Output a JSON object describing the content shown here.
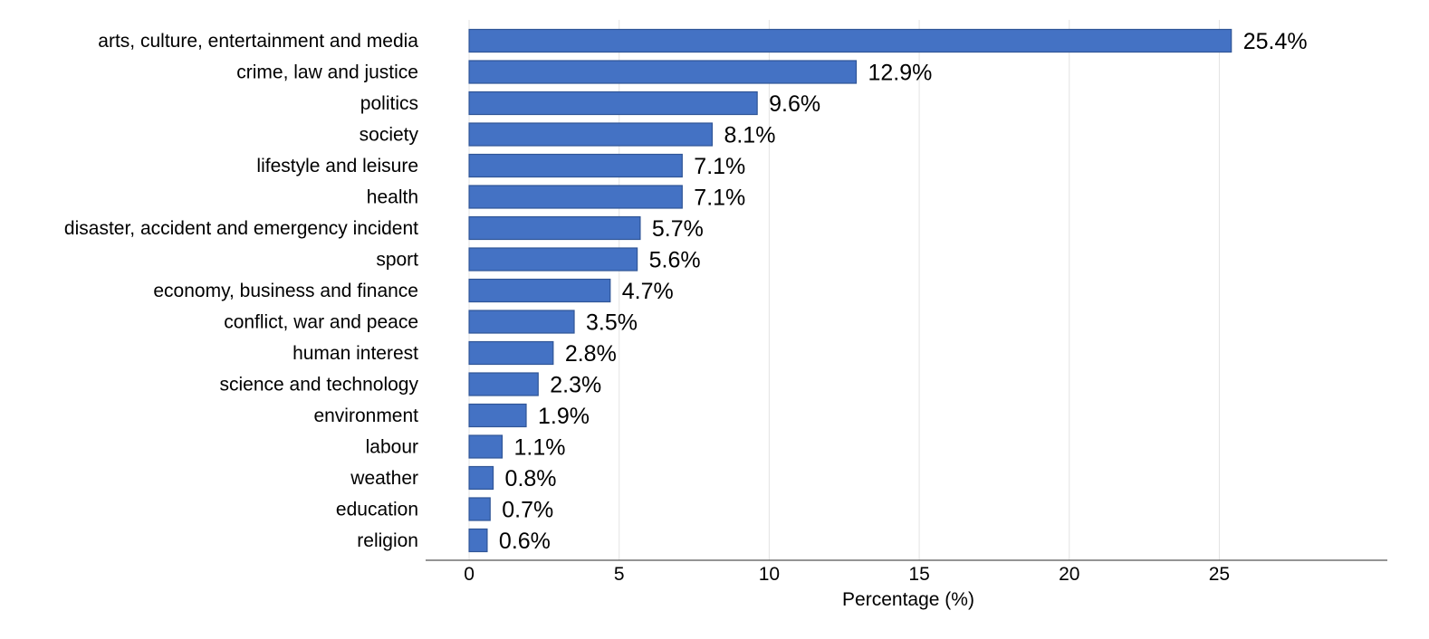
{
  "chart_data": {
    "type": "bar",
    "orientation": "horizontal",
    "categories": [
      "arts, culture, entertainment and media",
      "crime, law and justice",
      "politics",
      "society",
      "lifestyle and leisure",
      "health",
      "disaster, accident and emergency incident",
      "sport",
      "economy, business and finance",
      "conflict, war and peace",
      "human interest",
      "science and technology",
      "environment",
      "labour",
      "weather",
      "education",
      "religion"
    ],
    "values": [
      25.4,
      12.9,
      9.6,
      8.1,
      7.1,
      7.1,
      5.7,
      5.6,
      4.7,
      3.5,
      2.8,
      2.3,
      1.9,
      1.1,
      0.8,
      0.7,
      0.6
    ],
    "data_labels": [
      "25.4%",
      "12.9%",
      "9.6%",
      "8.1%",
      "7.1%",
      "7.1%",
      "5.7%",
      "5.6%",
      "4.7%",
      "3.5%",
      "2.8%",
      "2.3%",
      "1.9%",
      "1.1%",
      "0.8%",
      "0.7%",
      "0.6%"
    ],
    "title": "",
    "xlabel": "Percentage (%)",
    "ylabel": "",
    "xlim": [
      -1.45,
      30.6
    ],
    "xticks": [
      0,
      5,
      10,
      15,
      20,
      25
    ],
    "xtick_labels": [
      "0",
      "5",
      "10",
      "15",
      "20",
      "25"
    ],
    "grid": "vertical",
    "legend": "none",
    "colors": {
      "bar_fill": "#4472c4",
      "bar_stroke": "#2f5597",
      "grid": "#e3e3e3",
      "axis": "#555555",
      "text": "#000000"
    }
  }
}
